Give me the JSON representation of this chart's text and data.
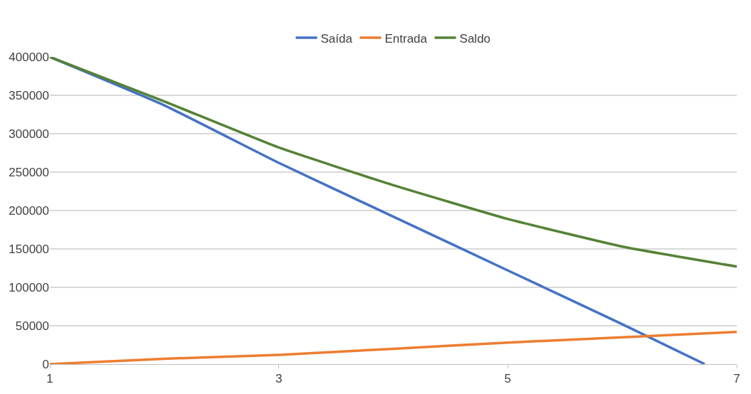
{
  "chart_data": {
    "type": "line",
    "xlim": [
      1,
      7
    ],
    "xticks": [
      1,
      3,
      5,
      7
    ],
    "ylim": [
      0,
      400000
    ],
    "yticks": [
      0,
      50000,
      100000,
      150000,
      200000,
      250000,
      300000,
      350000,
      400000
    ],
    "grid": "y",
    "legend": "top",
    "marker": "none",
    "line_style": "solid",
    "series": [
      {
        "name": "Saída",
        "color": "#4472c4",
        "x": [
          1,
          2,
          3,
          4,
          5,
          6,
          6.72
        ],
        "values": [
          400000,
          337000,
          262000,
          192000,
          122000,
          52000,
          0
        ]
      },
      {
        "name": "Entrada",
        "color": "#ed7d31",
        "x": [
          1,
          2,
          3,
          4,
          5,
          6,
          7
        ],
        "values": [
          0,
          7000,
          12000,
          20000,
          28000,
          35000,
          42000
        ]
      },
      {
        "name": "Saldo",
        "color": "#548235",
        "x": [
          1,
          2,
          3,
          4,
          5,
          6,
          7
        ],
        "values": [
          400000,
          342000,
          282000,
          233000,
          189000,
          153000,
          127000
        ]
      }
    ]
  }
}
